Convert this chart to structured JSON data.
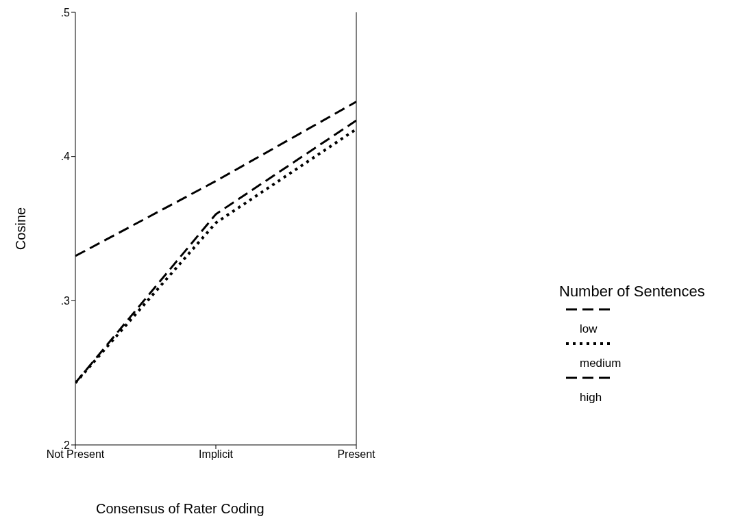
{
  "chart_data": {
    "type": "line",
    "xlabel": "Consensus of Rater Coding",
    "ylabel": "Cosine",
    "legend_title": "Number of Sentences",
    "legend": "right",
    "categories": [
      "Not Present",
      "Implicit",
      "Present"
    ],
    "series": [
      {
        "name": "low",
        "color": "#000000",
        "line_style": "dashed",
        "values": [
          0.243,
          0.36,
          0.425
        ]
      },
      {
        "name": "medium",
        "color": "#000000",
        "line_style": "dotted",
        "values": [
          0.243,
          0.354,
          0.419
        ]
      },
      {
        "name": "high",
        "color": "#000000",
        "line_style": "dashed",
        "values": [
          0.331,
          0.383,
          0.438
        ]
      }
    ],
    "ylim": [
      0.2,
      0.5
    ],
    "yticks": [
      {
        "value": 0.2,
        "label": ".2"
      },
      {
        "value": 0.3,
        "label": ".3"
      },
      {
        "value": 0.4,
        "label": ".4"
      },
      {
        "value": 0.5,
        "label": ".5"
      }
    ],
    "grid": false,
    "marker": "none"
  }
}
